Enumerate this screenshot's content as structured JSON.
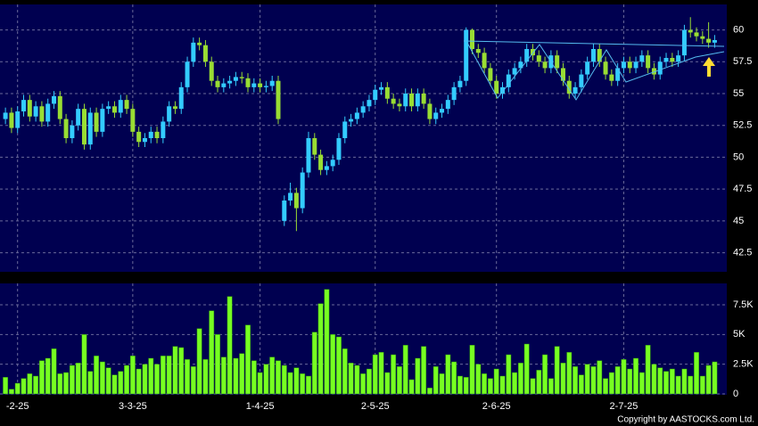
{
  "chart_data": {
    "type": "candlestick",
    "xlim": [
      -0.9,
      119
    ],
    "xticks": [
      {
        "value": 2,
        "label": "-2-25"
      },
      {
        "value": 21,
        "label": "3-3-25"
      },
      {
        "value": 42,
        "label": "1-4-25"
      },
      {
        "value": 61,
        "label": "2-5-25"
      },
      {
        "value": 81,
        "label": "2-6-25"
      },
      {
        "value": 102,
        "label": "2-7-25"
      }
    ],
    "ylim": [
      41,
      62
    ],
    "yticks": [
      42.5,
      45,
      47.5,
      50,
      52.5,
      55,
      57.5,
      60
    ],
    "grid": true,
    "up_color": "#33ccff",
    "down_color": "#99dd33",
    "open": [
      53.0,
      53.5,
      52.3,
      53.6,
      54.5,
      53.2,
      54.0,
      52.8,
      54.2,
      54.8,
      53.0,
      51.5,
      52.5,
      53.8,
      51.0,
      53.5,
      52.0,
      53.8,
      54.0,
      53.5,
      54.5,
      53.8,
      52.0,
      51.2,
      51.5,
      52.0,
      51.5,
      52.8,
      54.0,
      53.8,
      55.5,
      57.5,
      59.0,
      58.8,
      57.5,
      56.0,
      55.5,
      55.8,
      56.0,
      56.3,
      56.2,
      55.5,
      55.8,
      55.5,
      55.6,
      56.0,
      45.0,
      46.6,
      47.2,
      46.0,
      48.8,
      51.5,
      50.2,
      49.0,
      49.3,
      49.8,
      51.5,
      52.8,
      53.0,
      53.5,
      54.0,
      54.5,
      55.3,
      55.5,
      54.6,
      54.2,
      54.0,
      55.0,
      54.0,
      55.0,
      54.2,
      53.0,
      53.5,
      53.8,
      54.5,
      55.5,
      56.0,
      60.0,
      58.5,
      58.2,
      57.0,
      56.0,
      55.0,
      55.5,
      56.5,
      57.0,
      57.5,
      58.5,
      58.0,
      57.5,
      57.0,
      58.0,
      57.0,
      56.0,
      55.0,
      55.5,
      56.5,
      57.5,
      58.5,
      57.5,
      56.5,
      56.0,
      57.0,
      57.5,
      57.0,
      57.5,
      58.0,
      57.0,
      56.5,
      57.5,
      57.8,
      57.5,
      58.0,
      60.0,
      59.8,
      59.5,
      59.3,
      59.0
    ],
    "high": [
      53.9,
      53.9,
      54.0,
      54.9,
      54.9,
      54.4,
      54.4,
      54.6,
      55.2,
      55.2,
      53.4,
      52.9,
      54.2,
      54.2,
      53.9,
      53.9,
      54.2,
      54.4,
      54.4,
      54.9,
      54.9,
      54.2,
      52.4,
      51.9,
      52.4,
      52.4,
      53.2,
      54.4,
      54.4,
      55.9,
      57.9,
      59.4,
      59.4,
      59.2,
      57.9,
      56.4,
      56.2,
      56.4,
      56.7,
      56.7,
      56.6,
      56.2,
      56.2,
      56.0,
      56.4,
      56.4,
      47.0,
      48.0,
      47.6,
      49.2,
      52.0,
      51.9,
      50.6,
      49.7,
      50.2,
      51.9,
      53.2,
      53.4,
      53.9,
      54.4,
      54.9,
      55.7,
      55.9,
      55.9,
      55.0,
      54.6,
      55.4,
      55.4,
      55.4,
      55.4,
      54.6,
      53.9,
      54.2,
      54.9,
      55.9,
      56.4,
      60.2,
      60.1,
      58.9,
      58.6,
      57.4,
      56.4,
      55.9,
      56.9,
      57.4,
      57.9,
      58.9,
      58.9,
      58.4,
      57.9,
      58.4,
      58.4,
      57.4,
      56.4,
      55.9,
      56.9,
      57.9,
      58.9,
      58.9,
      57.9,
      56.9,
      57.4,
      57.9,
      57.9,
      57.9,
      58.4,
      58.4,
      57.4,
      57.9,
      58.2,
      58.2,
      58.4,
      60.4,
      61.0,
      60.2,
      59.9,
      60.6,
      59.6
    ],
    "low": [
      52.6,
      51.9,
      51.9,
      53.2,
      52.8,
      52.8,
      52.4,
      52.4,
      53.8,
      52.6,
      51.1,
      51.1,
      52.1,
      50.6,
      50.6,
      51.6,
      51.6,
      53.4,
      53.1,
      53.1,
      53.4,
      51.6,
      50.8,
      50.8,
      51.1,
      51.1,
      51.1,
      52.4,
      53.4,
      53.4,
      55.1,
      57.1,
      58.4,
      57.1,
      55.6,
      55.1,
      55.1,
      55.4,
      55.6,
      55.8,
      55.1,
      55.1,
      55.1,
      55.1,
      55.2,
      52.6,
      44.6,
      46.2,
      44.2,
      45.6,
      48.4,
      49.8,
      48.6,
      48.6,
      48.9,
      49.4,
      51.1,
      52.4,
      52.6,
      53.1,
      53.6,
      54.1,
      54.9,
      54.2,
      53.8,
      53.6,
      53.6,
      53.6,
      53.6,
      53.8,
      52.6,
      52.6,
      53.1,
      53.4,
      54.1,
      55.1,
      55.6,
      58.1,
      57.8,
      56.6,
      55.6,
      54.6,
      54.6,
      55.1,
      56.1,
      56.6,
      57.1,
      57.6,
      57.1,
      56.6,
      56.6,
      56.6,
      55.6,
      54.6,
      54.6,
      55.1,
      56.1,
      57.1,
      57.1,
      56.1,
      55.6,
      55.6,
      56.6,
      56.6,
      56.6,
      57.1,
      56.6,
      56.1,
      56.1,
      57.1,
      57.1,
      57.1,
      57.6,
      59.4,
      59.1,
      58.9,
      58.6,
      58.6
    ],
    "close": [
      53.5,
      52.3,
      53.6,
      54.5,
      53.2,
      54.0,
      52.8,
      54.2,
      54.8,
      53.0,
      51.5,
      52.5,
      53.8,
      51.0,
      53.5,
      52.0,
      53.8,
      54.0,
      53.5,
      54.5,
      53.8,
      52.0,
      51.2,
      51.5,
      52.0,
      51.5,
      52.8,
      54.0,
      53.8,
      55.5,
      57.5,
      59.0,
      58.8,
      57.5,
      56.0,
      55.5,
      55.8,
      56.0,
      56.3,
      56.2,
      55.5,
      55.8,
      55.5,
      55.6,
      56.0,
      53.0,
      46.6,
      47.2,
      46.0,
      48.8,
      51.5,
      50.2,
      49.0,
      49.3,
      49.8,
      51.5,
      52.8,
      53.0,
      53.5,
      54.0,
      54.5,
      55.3,
      55.5,
      54.6,
      54.2,
      54.0,
      55.0,
      54.0,
      55.0,
      54.2,
      53.0,
      53.5,
      53.8,
      54.5,
      55.5,
      56.0,
      60.0,
      58.5,
      58.2,
      57.0,
      56.0,
      55.0,
      55.5,
      56.5,
      57.0,
      57.5,
      58.5,
      58.0,
      57.5,
      57.0,
      58.0,
      57.0,
      56.0,
      55.0,
      55.5,
      56.5,
      57.5,
      58.5,
      57.5,
      56.5,
      56.0,
      57.0,
      57.5,
      57.0,
      57.5,
      58.0,
      57.0,
      56.5,
      57.5,
      57.8,
      57.5,
      58.0,
      60.0,
      59.8,
      59.5,
      59.3,
      59.0,
      59.2
    ],
    "volume": {
      "color": "#77ff22",
      "ylim": [
        0,
        9300
      ],
      "yticks": [
        0,
        {
          "value": 2500,
          "label": "2.5K"
        },
        {
          "value": 5000,
          "label": "5K"
        },
        {
          "value": 7500,
          "label": "7.5K"
        }
      ],
      "values": [
        1400,
        400,
        900,
        1300,
        1700,
        1500,
        2800,
        3000,
        3800,
        1700,
        1800,
        2400,
        2600,
        5000,
        1900,
        3200,
        2700,
        2200,
        1600,
        1900,
        2400,
        3200,
        2100,
        2500,
        3000,
        2500,
        3200,
        3200,
        4000,
        3900,
        2900,
        2300,
        5500,
        2900,
        7000,
        5000,
        3100,
        8200,
        3000,
        3400,
        5800,
        2800,
        1800,
        2500,
        3100,
        2800,
        2400,
        1800,
        2200,
        1700,
        1500,
        5200,
        7600,
        8800,
        5000,
        4800,
        3800,
        2600,
        2400,
        1700,
        2100,
        3300,
        3500,
        1800,
        3300,
        2300,
        4100,
        1200,
        3000,
        4000,
        500,
        2300,
        1700,
        3300,
        2700,
        1500,
        1400,
        4100,
        2500,
        1700,
        1300,
        2100,
        1500,
        3300,
        1800,
        2600,
        4200,
        1300,
        2000,
        3300,
        1300,
        4000,
        2600,
        3500,
        2300,
        1600,
        2500,
        2300,
        2800,
        1300,
        1800,
        2300,
        2900,
        2100,
        3000,
        1800,
        4100,
        2500,
        2200,
        1900,
        2100,
        1500,
        2100,
        1500,
        3500,
        1500,
        2400,
        2700
      ]
    },
    "copyright": "Copyright by AASTOCKS.com Ltd."
  }
}
